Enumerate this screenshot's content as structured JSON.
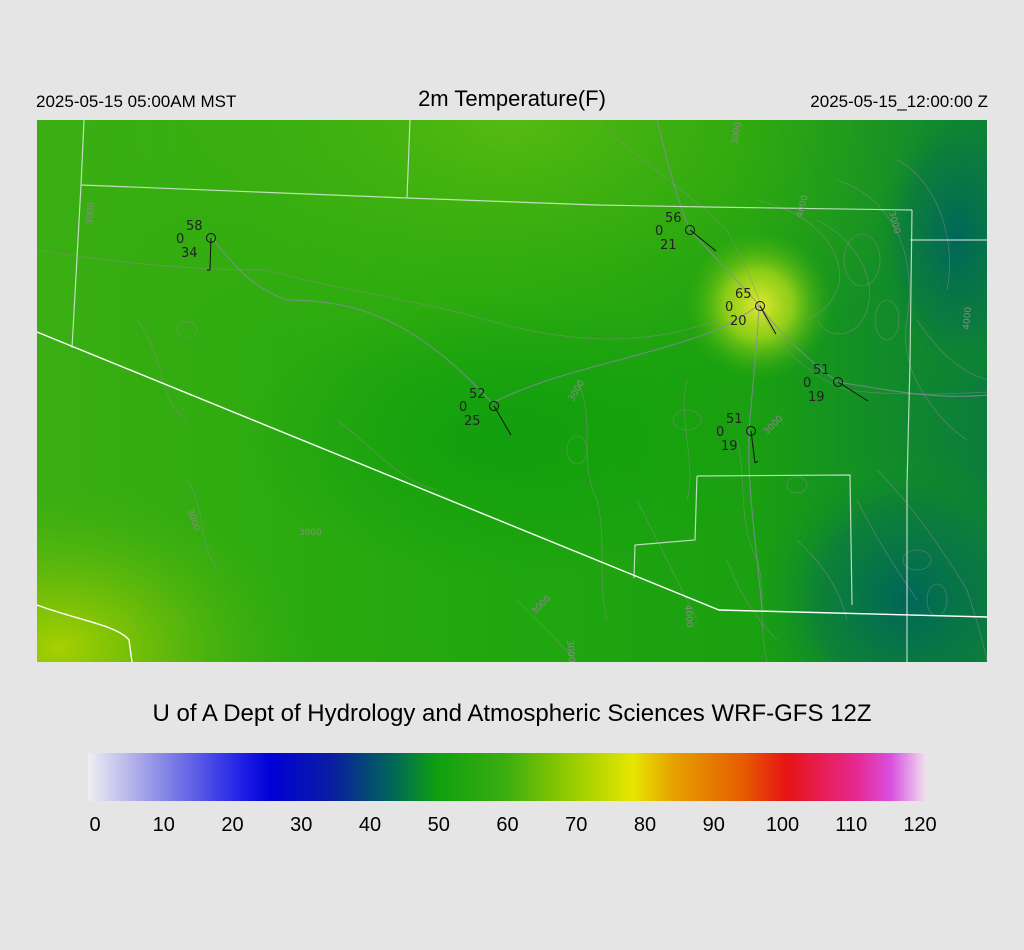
{
  "header": {
    "local_time": "2025-05-15 05:00AM MST",
    "title": "2m Temperature(F)",
    "valid_time": "2025-05-15_12:00:00 Z"
  },
  "credit": "U of A Dept of Hydrology and Atmospheric Sciences WRF-GFS 12Z",
  "colorbar": {
    "ticks": [
      "0",
      "10",
      "20",
      "30",
      "40",
      "50",
      "60",
      "70",
      "80",
      "90",
      "100",
      "110",
      "120"
    ],
    "stops": [
      {
        "value": 0,
        "color": "#eeeef2"
      },
      {
        "value": 10,
        "color": "#8f8fe6"
      },
      {
        "value": 22,
        "color": "#2020e6"
      },
      {
        "value": 26,
        "color": "#0000d8"
      },
      {
        "value": 35,
        "color": "#0a1ea0"
      },
      {
        "value": 44,
        "color": "#006a55"
      },
      {
        "value": 50,
        "color": "#10a010"
      },
      {
        "value": 60,
        "color": "#3cae10"
      },
      {
        "value": 68,
        "color": "#8cc800"
      },
      {
        "value": 78,
        "color": "#e6e600"
      },
      {
        "value": 84,
        "color": "#e6a000"
      },
      {
        "value": 94,
        "color": "#e65a00"
      },
      {
        "value": 100,
        "color": "#e61414"
      },
      {
        "value": 110,
        "color": "#e62890"
      },
      {
        "value": 115,
        "color": "#d850e0"
      },
      {
        "value": 120,
        "color": "#f0e0f0"
      }
    ]
  },
  "stations": [
    {
      "id": "stn-1",
      "temp": "58",
      "cloud": "0",
      "dewpoint": "34"
    },
    {
      "id": "stn-2",
      "temp": "56",
      "cloud": "0",
      "dewpoint": "21"
    },
    {
      "id": "stn-3",
      "temp": "65",
      "cloud": "0",
      "dewpoint": "20"
    },
    {
      "id": "stn-4",
      "temp": "51",
      "cloud": "0",
      "dewpoint": "19"
    },
    {
      "id": "stn-5",
      "temp": "52",
      "cloud": "0",
      "dewpoint": "25"
    },
    {
      "id": "stn-6",
      "temp": "51",
      "cloud": "0",
      "dewpoint": "19"
    }
  ],
  "contour_labels": [
    "3000",
    "4000",
    "3000",
    "4000",
    "3000",
    "3000",
    "3000",
    "3000",
    "3000",
    "4000",
    "3000",
    "3000"
  ]
}
